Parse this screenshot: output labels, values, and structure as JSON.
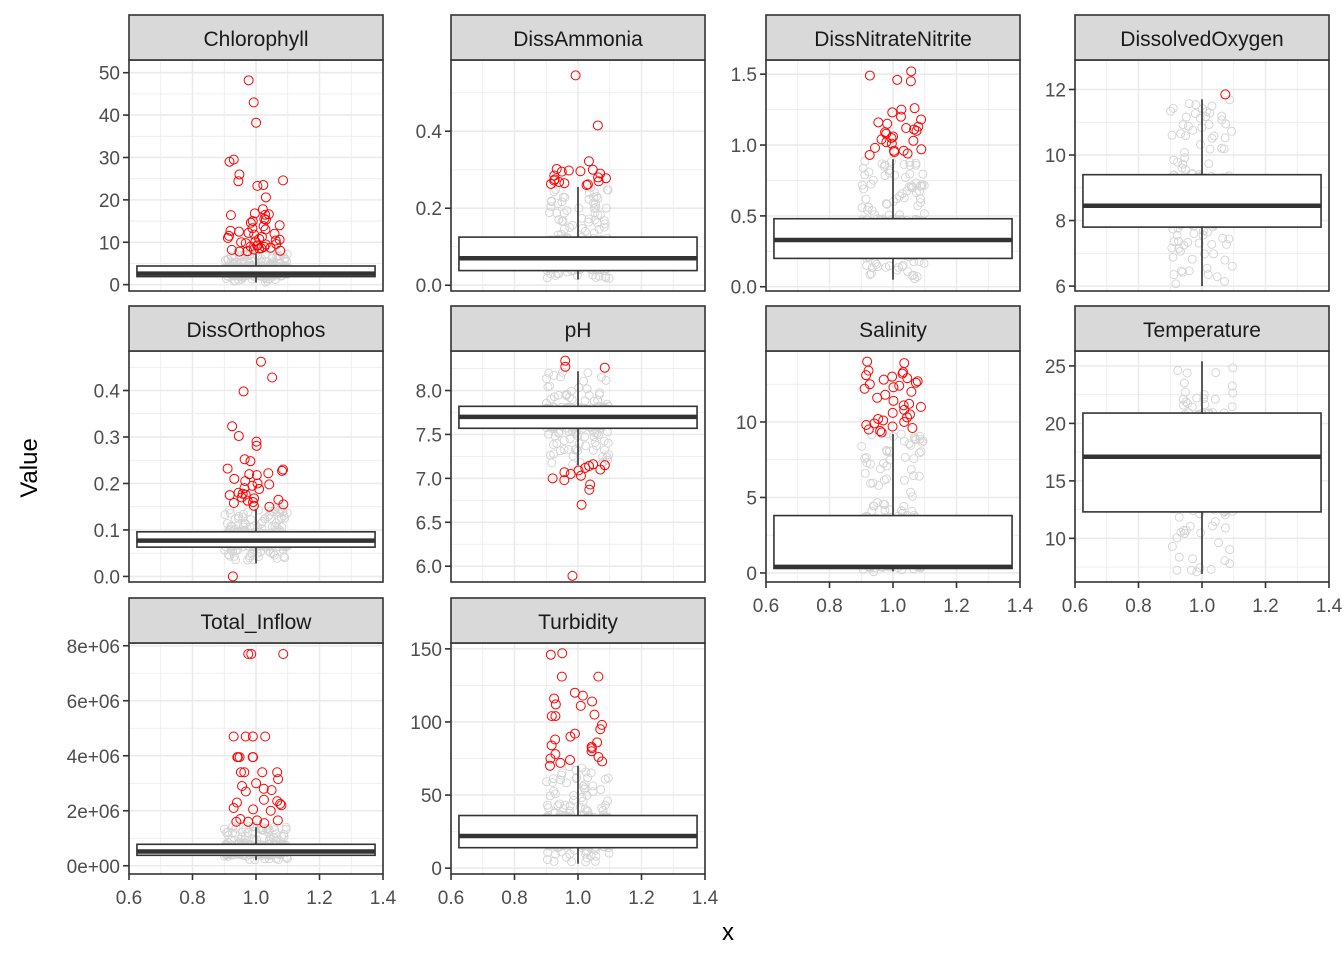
{
  "chart_data": {
    "type": "boxplot-facet",
    "xlabel": "x",
    "ylabel": "Value",
    "x_range": [
      0.6,
      1.4
    ],
    "x_ticks": [
      "0.6",
      "0.8",
      "1.0",
      "1.2",
      "1.4"
    ],
    "box_x_range": [
      0.625,
      1.375
    ],
    "jitter_range": [
      0.9,
      1.1
    ],
    "colors": {
      "normal_point": "#d3d3d3",
      "outlier_point": "#ff0000",
      "box": "#333333",
      "strip_bg": "#d9d9d9",
      "grid": "#ebebeb"
    },
    "panels": [
      {
        "name": "Chlorophyll",
        "ylim": [
          -1.5,
          53
        ],
        "y_ticks": [
          0,
          10,
          20,
          30,
          40,
          50
        ],
        "y_tick_labels": [
          "0",
          "10",
          "20",
          "30",
          "40",
          "50"
        ],
        "box": {
          "lower_whisker": 0.5,
          "q1": 1.9,
          "median": 2.6,
          "q3": 4.4,
          "upper_whisker": 7.2
        },
        "normal_range": [
          0.5,
          7.5
        ],
        "outliers": [
          48.2,
          43.0,
          38.2,
          29.5,
          29.0,
          26.0,
          24.6,
          24.4,
          23.5,
          23.3,
          20.6,
          17.8,
          16.8,
          16.6,
          16.5,
          16.4,
          15.5,
          15.3,
          15.0,
          14.6,
          14.0,
          13.8,
          13.3,
          13.0,
          12.7,
          12.5,
          12.2,
          12.0,
          11.8,
          11.5,
          11.3,
          11.0,
          10.8,
          10.6,
          10.4,
          10.2,
          10.0,
          9.8,
          9.6,
          9.5,
          9.3,
          9.2,
          9.0,
          8.9,
          8.7,
          8.6,
          8.5,
          8.3,
          8.2,
          8.0,
          7.9,
          7.8
        ],
        "show_x_axis": false
      },
      {
        "name": "DissAmmonia",
        "ylim": [
          -0.015,
          0.585
        ],
        "y_ticks": [
          0.0,
          0.2,
          0.4
        ],
        "y_tick_labels": [
          "0.0",
          "0.2",
          "0.4"
        ],
        "box": {
          "lower_whisker": 0.015,
          "q1": 0.038,
          "median": 0.07,
          "q3": 0.125,
          "upper_whisker": 0.255
        },
        "normal_range": [
          0.015,
          0.255
        ],
        "outliers": [
          0.545,
          0.415,
          0.322,
          0.302,
          0.3,
          0.298,
          0.296,
          0.295,
          0.29,
          0.285,
          0.28,
          0.278,
          0.275,
          0.272,
          0.27,
          0.268,
          0.265,
          0.263,
          0.262,
          0.26
        ],
        "show_x_axis": false
      },
      {
        "name": "DissNitrateNitrite",
        "ylim": [
          -0.03,
          1.6
        ],
        "y_ticks": [
          0.0,
          0.5,
          1.0,
          1.5
        ],
        "y_tick_labels": [
          "0.0",
          "0.5",
          "1.0",
          "1.5"
        ],
        "box": {
          "lower_whisker": 0.05,
          "q1": 0.2,
          "median": 0.33,
          "q3": 0.48,
          "upper_whisker": 0.9
        },
        "normal_range": [
          0.05,
          0.9
        ],
        "outliers": [
          1.52,
          1.49,
          1.46,
          1.45,
          1.26,
          1.25,
          1.23,
          1.2,
          1.18,
          1.16,
          1.15,
          1.13,
          1.12,
          1.11,
          1.1,
          1.09,
          1.08,
          1.06,
          1.05,
          1.04,
          1.03,
          1.02,
          1.01,
          0.98,
          0.97,
          0.96,
          0.96,
          0.95,
          0.94,
          0.93
        ],
        "show_x_axis": false
      },
      {
        "name": "DissolvedOxygen",
        "ylim": [
          5.85,
          12.9
        ],
        "y_ticks": [
          6,
          8,
          10,
          12
        ],
        "y_tick_labels": [
          "6",
          "8",
          "10",
          "12"
        ],
        "box": {
          "lower_whisker": 6.0,
          "q1": 7.8,
          "median": 8.45,
          "q3": 9.4,
          "upper_whisker": 11.7
        },
        "normal_range": [
          6.0,
          11.7
        ],
        "outliers": [
          11.85
        ],
        "show_x_axis": false
      },
      {
        "name": "DissOrthophos",
        "ylim": [
          -0.012,
          0.485
        ],
        "y_ticks": [
          0.0,
          0.1,
          0.2,
          0.3,
          0.4
        ],
        "y_tick_labels": [
          "0.0",
          "0.1",
          "0.2",
          "0.3",
          "0.4"
        ],
        "box": {
          "lower_whisker": 0.028,
          "q1": 0.063,
          "median": 0.077,
          "q3": 0.096,
          "upper_whisker": 0.145
        },
        "normal_range": [
          0.035,
          0.145
        ],
        "outliers": [
          0.462,
          0.428,
          0.398,
          0.323,
          0.302,
          0.29,
          0.281,
          0.252,
          0.248,
          0.232,
          0.23,
          0.227,
          0.222,
          0.22,
          0.218,
          0.21,
          0.205,
          0.2,
          0.198,
          0.195,
          0.19,
          0.188,
          0.18,
          0.178,
          0.176,
          0.175,
          0.17,
          0.168,
          0.165,
          0.163,
          0.16,
          0.158,
          0.155,
          0.152,
          0.15,
          0.0
        ],
        "show_x_axis": false
      },
      {
        "name": "pH",
        "ylim": [
          5.82,
          8.45
        ],
        "y_ticks": [
          6.0,
          6.5,
          7.0,
          7.5,
          8.0
        ],
        "y_tick_labels": [
          "6.0",
          "6.5",
          "7.0",
          "7.5",
          "8.0"
        ],
        "box": {
          "lower_whisker": 7.15,
          "q1": 7.57,
          "median": 7.7,
          "q3": 7.82,
          "upper_whisker": 8.22
        },
        "normal_range": [
          7.15,
          8.22
        ],
        "outliers": [
          8.34,
          8.27,
          8.26,
          7.16,
          7.15,
          7.14,
          7.12,
          7.1,
          7.09,
          7.07,
          7.05,
          7.03,
          7.0,
          6.98,
          6.93,
          6.87,
          6.7,
          5.89
        ],
        "show_x_axis": false
      },
      {
        "name": "Salinity",
        "ylim": [
          -0.6,
          14.7
        ],
        "y_ticks": [
          0,
          5,
          10
        ],
        "y_tick_labels": [
          "0",
          "5",
          "10"
        ],
        "box": {
          "lower_whisker": 0.1,
          "q1": 0.3,
          "median": 0.4,
          "q3": 3.8,
          "upper_whisker": 9.2
        },
        "normal_range": [
          0.0,
          9.3
        ],
        "outliers": [
          14.0,
          13.9,
          13.4,
          13.3,
          13.2,
          13.1,
          13.0,
          12.9,
          12.8,
          12.7,
          12.6,
          12.5,
          12.4,
          12.3,
          12.2,
          12.0,
          11.8,
          11.6,
          11.4,
          11.2,
          11.1,
          11.0,
          10.8,
          10.6,
          10.5,
          10.3,
          10.2,
          10.1,
          10.0,
          9.9,
          9.8,
          9.7,
          9.6,
          9.5,
          9.4,
          9.3
        ],
        "show_x_axis": true
      },
      {
        "name": "Temperature",
        "ylim": [
          6.2,
          26.3
        ],
        "y_ticks": [
          10,
          15,
          20,
          25
        ],
        "y_tick_labels": [
          "10",
          "15",
          "20",
          "25"
        ],
        "box": {
          "lower_whisker": 6.9,
          "q1": 12.3,
          "median": 17.1,
          "q3": 20.9,
          "upper_whisker": 25.4
        },
        "normal_range": [
          6.9,
          25.4
        ],
        "outliers": [],
        "show_x_axis": true
      },
      {
        "name": "Total_Inflow",
        "ylim": [
          -300000,
          8100000
        ],
        "y_ticks": [
          0,
          2000000,
          4000000,
          6000000,
          8000000
        ],
        "y_tick_labels": [
          "0e+00",
          "2e+06",
          "4e+06",
          "6e+06",
          "8e+06"
        ],
        "box": {
          "lower_whisker": 200000,
          "q1": 380000,
          "median": 520000,
          "q3": 780000,
          "upper_whisker": 1400000
        },
        "normal_range": [
          200000,
          1450000
        ],
        "outliers": [
          7700000,
          7700000,
          7700000,
          4700000,
          4700000,
          4700000,
          4700000,
          3950000,
          3950000,
          3950000,
          3950000,
          3950000,
          3400000,
          3400000,
          3400000,
          3400000,
          3150000,
          3000000,
          2900000,
          2800000,
          2750000,
          2700000,
          2400000,
          2350000,
          2300000,
          2250000,
          2200000,
          2100000,
          2050000,
          2000000,
          1700000,
          1650000,
          1650000,
          1600000,
          1600000,
          1550000
        ],
        "show_x_axis": true
      },
      {
        "name": "Turbidity",
        "ylim": [
          -4,
          154
        ],
        "y_ticks": [
          0,
          50,
          100,
          150
        ],
        "y_tick_labels": [
          "0",
          "50",
          "100",
          "150"
        ],
        "box": {
          "lower_whisker": 3,
          "q1": 14,
          "median": 22,
          "q3": 36,
          "upper_whisker": 70
        },
        "normal_range": [
          3,
          71
        ],
        "outliers": [
          147,
          146,
          131,
          131,
          120,
          118,
          116,
          114,
          112,
          111,
          105,
          104,
          104,
          98,
          95,
          92,
          90,
          88,
          86,
          84,
          83,
          82,
          80,
          78,
          76,
          75,
          74,
          73,
          72,
          70
        ],
        "show_x_axis": true
      }
    ]
  }
}
